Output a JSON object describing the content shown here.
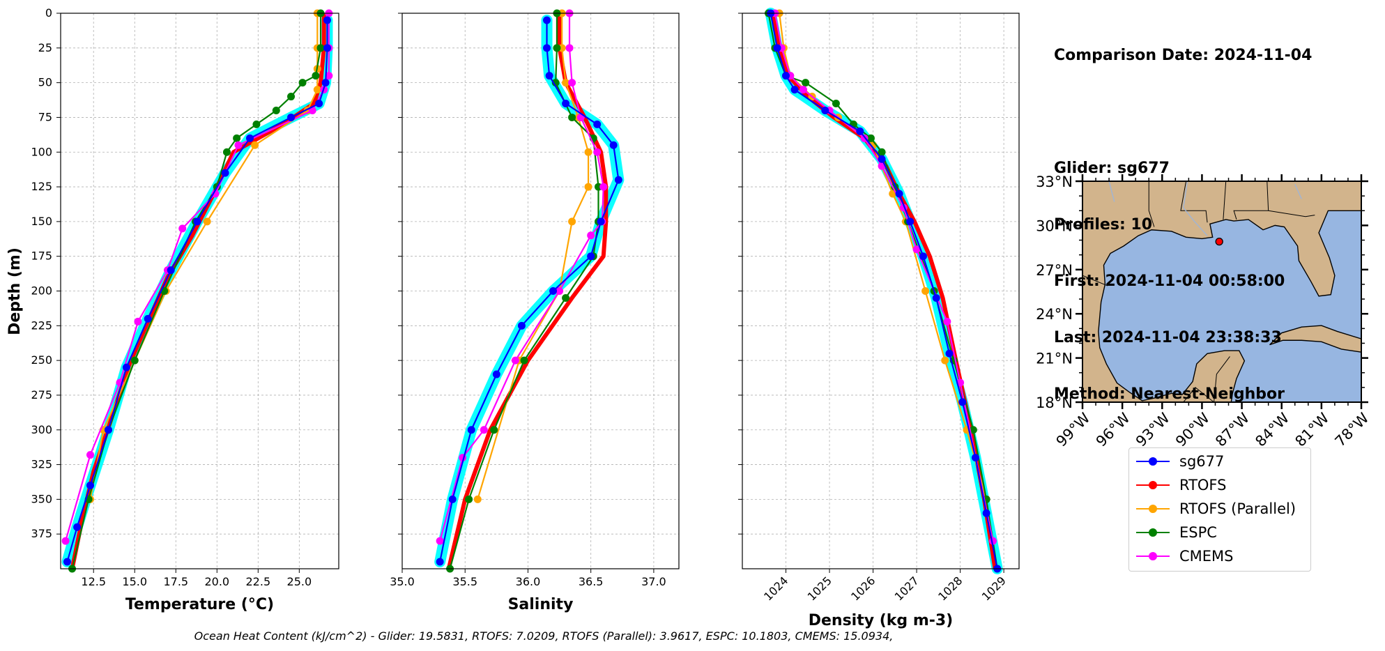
{
  "info": {
    "comparison_date": "Comparison Date: 2024-11-04",
    "glider": "Glider: sg677",
    "profiles": "Profiles: 10",
    "first": "First: 2024-11-04 00:58:00",
    "last": "Last: 2024-11-04 23:38:33",
    "method": "Method: Nearest-Neighbor"
  },
  "footer": "Ocean Heat Content (kJ/cm^2) - Glider: 19.5831,  RTOFS: 7.0209,  RTOFS (Parallel): 3.9617,  ESPC: 10.1803,  CMEMS: 15.0934,",
  "legend": [
    {
      "name": "sg677",
      "color": "#0000ff"
    },
    {
      "name": "RTOFS",
      "color": "#ff0000"
    },
    {
      "name": "RTOFS (Parallel)",
      "color": "#ffa500"
    },
    {
      "name": "ESPC",
      "color": "#008000"
    },
    {
      "name": "CMEMS",
      "color": "#ff00ff"
    }
  ],
  "chart_data": [
    {
      "type": "line",
      "xlabel": "Temperature (°C)",
      "ylabel": "Depth (m)",
      "xlim": [
        10.5,
        27.4
      ],
      "ylim": [
        400,
        0
      ],
      "xticks": [
        "12.5",
        "15.0",
        "17.5",
        "20.0",
        "22.5",
        "25.0"
      ],
      "yticks": [
        "0",
        "25",
        "50",
        "75",
        "100",
        "125",
        "150",
        "175",
        "200",
        "225",
        "250",
        "275",
        "300",
        "325",
        "350",
        "375"
      ],
      "grid": true,
      "series": [
        {
          "name": "sg677",
          "color": "#0000ff",
          "x": [
            26.7,
            26.7,
            26.6,
            26.2,
            24.5,
            22.0,
            20.5,
            18.8,
            17.2,
            15.8,
            14.5,
            13.4,
            12.3,
            11.5,
            10.9
          ],
          "y": [
            5,
            25,
            50,
            65,
            75,
            90,
            115,
            150,
            185,
            220,
            255,
            300,
            340,
            370,
            395
          ]
        },
        {
          "name": "RTOFS",
          "color": "#ff0000",
          "x": [
            26.5,
            26.5,
            26.3,
            25.9,
            24.0,
            21.0,
            19.8,
            18.5,
            17.0,
            15.7,
            14.6,
            13.5,
            12.5,
            11.8,
            11.2
          ],
          "y": [
            0,
            25,
            50,
            65,
            80,
            100,
            130,
            160,
            190,
            225,
            255,
            295,
            330,
            365,
            400
          ]
        },
        {
          "name": "RTOFS (Parallel)",
          "color": "#ffa500",
          "x": [
            26.1,
            26.1,
            26.1,
            26.1,
            25.5,
            22.3,
            19.4,
            16.9,
            15.0,
            13.1,
            12.3
          ],
          "y": [
            0,
            25,
            40,
            55,
            70,
            95,
            150,
            200,
            250,
            300,
            350
          ]
        },
        {
          "name": "ESPC",
          "color": "#008000",
          "x": [
            26.3,
            26.3,
            26.0,
            25.2,
            24.5,
            23.6,
            22.4,
            21.2,
            20.6,
            20.0,
            18.7,
            16.8,
            15.0,
            13.4,
            12.2,
            11.2
          ],
          "y": [
            0,
            25,
            45,
            50,
            60,
            70,
            80,
            90,
            100,
            125,
            150,
            200,
            250,
            300,
            350,
            400
          ]
        },
        {
          "name": "CMEMS",
          "color": "#ff00ff",
          "x": [
            26.8,
            26.8,
            26.8,
            26.5,
            25.8,
            21.3,
            19.9,
            17.9,
            17.0,
            15.2,
            14.1,
            12.3,
            10.8
          ],
          "y": [
            0,
            25,
            45,
            55,
            70,
            95,
            130,
            155,
            185,
            222,
            266,
            318,
            380
          ]
        }
      ]
    },
    {
      "type": "line",
      "xlabel": "Salinity",
      "ylim": [
        400,
        0
      ],
      "xlim": [
        35.0,
        37.2
      ],
      "xticks": [
        "35.0",
        "35.5",
        "36.0",
        "36.5",
        "37.0"
      ],
      "grid": true,
      "series": [
        {
          "name": "sg677",
          "color": "#0000ff",
          "x": [
            36.15,
            36.15,
            36.17,
            36.3,
            36.55,
            36.68,
            36.72,
            36.58,
            36.5,
            36.2,
            35.95,
            35.75,
            35.55,
            35.4,
            35.3
          ],
          "y": [
            5,
            25,
            45,
            65,
            80,
            95,
            120,
            150,
            175,
            200,
            225,
            260,
            300,
            350,
            395
          ]
        },
        {
          "name": "RTOFS",
          "color": "#ff0000",
          "x": [
            36.25,
            36.25,
            36.3,
            36.45,
            36.58,
            36.62,
            36.62,
            36.6,
            36.35,
            36.0,
            35.7,
            35.5,
            35.37
          ],
          "y": [
            0,
            25,
            50,
            75,
            100,
            125,
            150,
            175,
            205,
            250,
            300,
            350,
            400
          ]
        },
        {
          "name": "RTOFS (Parallel)",
          "color": "#ffa500",
          "x": [
            36.27,
            36.27,
            36.3,
            36.4,
            36.48,
            36.48,
            36.35,
            36.25,
            35.93,
            35.6
          ],
          "y": [
            0,
            25,
            50,
            75,
            100,
            125,
            150,
            200,
            250,
            350
          ]
        },
        {
          "name": "ESPC",
          "color": "#008000",
          "x": [
            36.23,
            36.23,
            36.22,
            36.35,
            36.52,
            36.56,
            36.56,
            36.52,
            36.3,
            35.97,
            35.73,
            35.53,
            35.38
          ],
          "y": [
            0,
            25,
            50,
            75,
            90,
            125,
            150,
            175,
            205,
            250,
            300,
            350,
            400
          ]
        },
        {
          "name": "CMEMS",
          "color": "#ff00ff",
          "x": [
            36.33,
            36.33,
            36.35,
            36.42,
            36.55,
            36.6,
            36.59,
            36.5,
            36.25,
            35.9,
            35.65,
            35.48,
            35.3
          ],
          "y": [
            0,
            25,
            50,
            75,
            100,
            125,
            150,
            160,
            200,
            250,
            300,
            320,
            380
          ]
        }
      ]
    },
    {
      "type": "line",
      "xlabel": "Density (kg m-3)",
      "ylim": [
        400,
        0
      ],
      "xlim": [
        1023.0,
        1029.35
      ],
      "xticks": [
        "1024",
        "1025",
        "1026",
        "1027",
        "1028",
        "1029"
      ],
      "grid": true,
      "series": [
        {
          "name": "sg677",
          "color": "#0000ff",
          "x": [
            1023.65,
            1023.8,
            1024.0,
            1024.2,
            1024.9,
            1025.7,
            1026.2,
            1026.6,
            1026.85,
            1027.15,
            1027.45,
            1027.75,
            1028.05,
            1028.35,
            1028.6,
            1028.85
          ],
          "y": [
            0,
            25,
            45,
            55,
            70,
            85,
            105,
            130,
            150,
            175,
            205,
            245,
            280,
            320,
            360,
            400
          ]
        },
        {
          "name": "RTOFS",
          "color": "#ff0000",
          "x": [
            1023.7,
            1023.85,
            1024.05,
            1024.5,
            1025.1,
            1025.8,
            1026.3,
            1026.6,
            1026.95,
            1027.3,
            1027.6,
            1027.9,
            1028.25,
            1028.55,
            1028.8
          ],
          "y": [
            0,
            25,
            45,
            60,
            75,
            90,
            110,
            130,
            150,
            175,
            205,
            250,
            300,
            350,
            400
          ]
        },
        {
          "name": "RTOFS (Parallel)",
          "color": "#ffa500",
          "x": [
            1023.85,
            1023.95,
            1024.1,
            1024.6,
            1025.2,
            1026.0,
            1026.45,
            1026.75,
            1027.2,
            1027.65,
            1028.15,
            1028.6
          ],
          "y": [
            0,
            25,
            45,
            60,
            75,
            95,
            130,
            150,
            200,
            250,
            300,
            350
          ]
        },
        {
          "name": "ESPC",
          "color": "#008000",
          "x": [
            1023.6,
            1023.75,
            1024.0,
            1024.45,
            1025.15,
            1025.55,
            1025.95,
            1026.2,
            1026.5,
            1026.8,
            1027.4,
            1027.85,
            1028.3,
            1028.6,
            1028.85
          ],
          "y": [
            0,
            25,
            45,
            50,
            65,
            80,
            90,
            100,
            125,
            150,
            200,
            250,
            300,
            350,
            400
          ]
        },
        {
          "name": "CMEMS",
          "color": "#ff00ff",
          "x": [
            1023.75,
            1023.9,
            1024.1,
            1024.4,
            1025.0,
            1025.8,
            1026.2,
            1026.7,
            1027.0,
            1027.7,
            1028.0,
            1028.75
          ],
          "y": [
            0,
            25,
            45,
            55,
            70,
            90,
            110,
            140,
            170,
            222,
            266,
            380
          ]
        }
      ]
    }
  ],
  "map": {
    "lat_labels": [
      "33°N",
      "30°N",
      "27°N",
      "24°N",
      "21°N",
      "18°N"
    ],
    "lon_labels": [
      "99°W",
      "96°W",
      "93°W",
      "90°W",
      "87°W",
      "84°W",
      "81°W",
      "78°W"
    ],
    "extent": {
      "lon": [
        -99,
        -78
      ],
      "lat": [
        18,
        33
      ]
    },
    "glider_position": {
      "lon": -88.7,
      "lat": 28.9
    },
    "land_color": "#d2b48c",
    "ocean_color": "#97b6e1"
  }
}
